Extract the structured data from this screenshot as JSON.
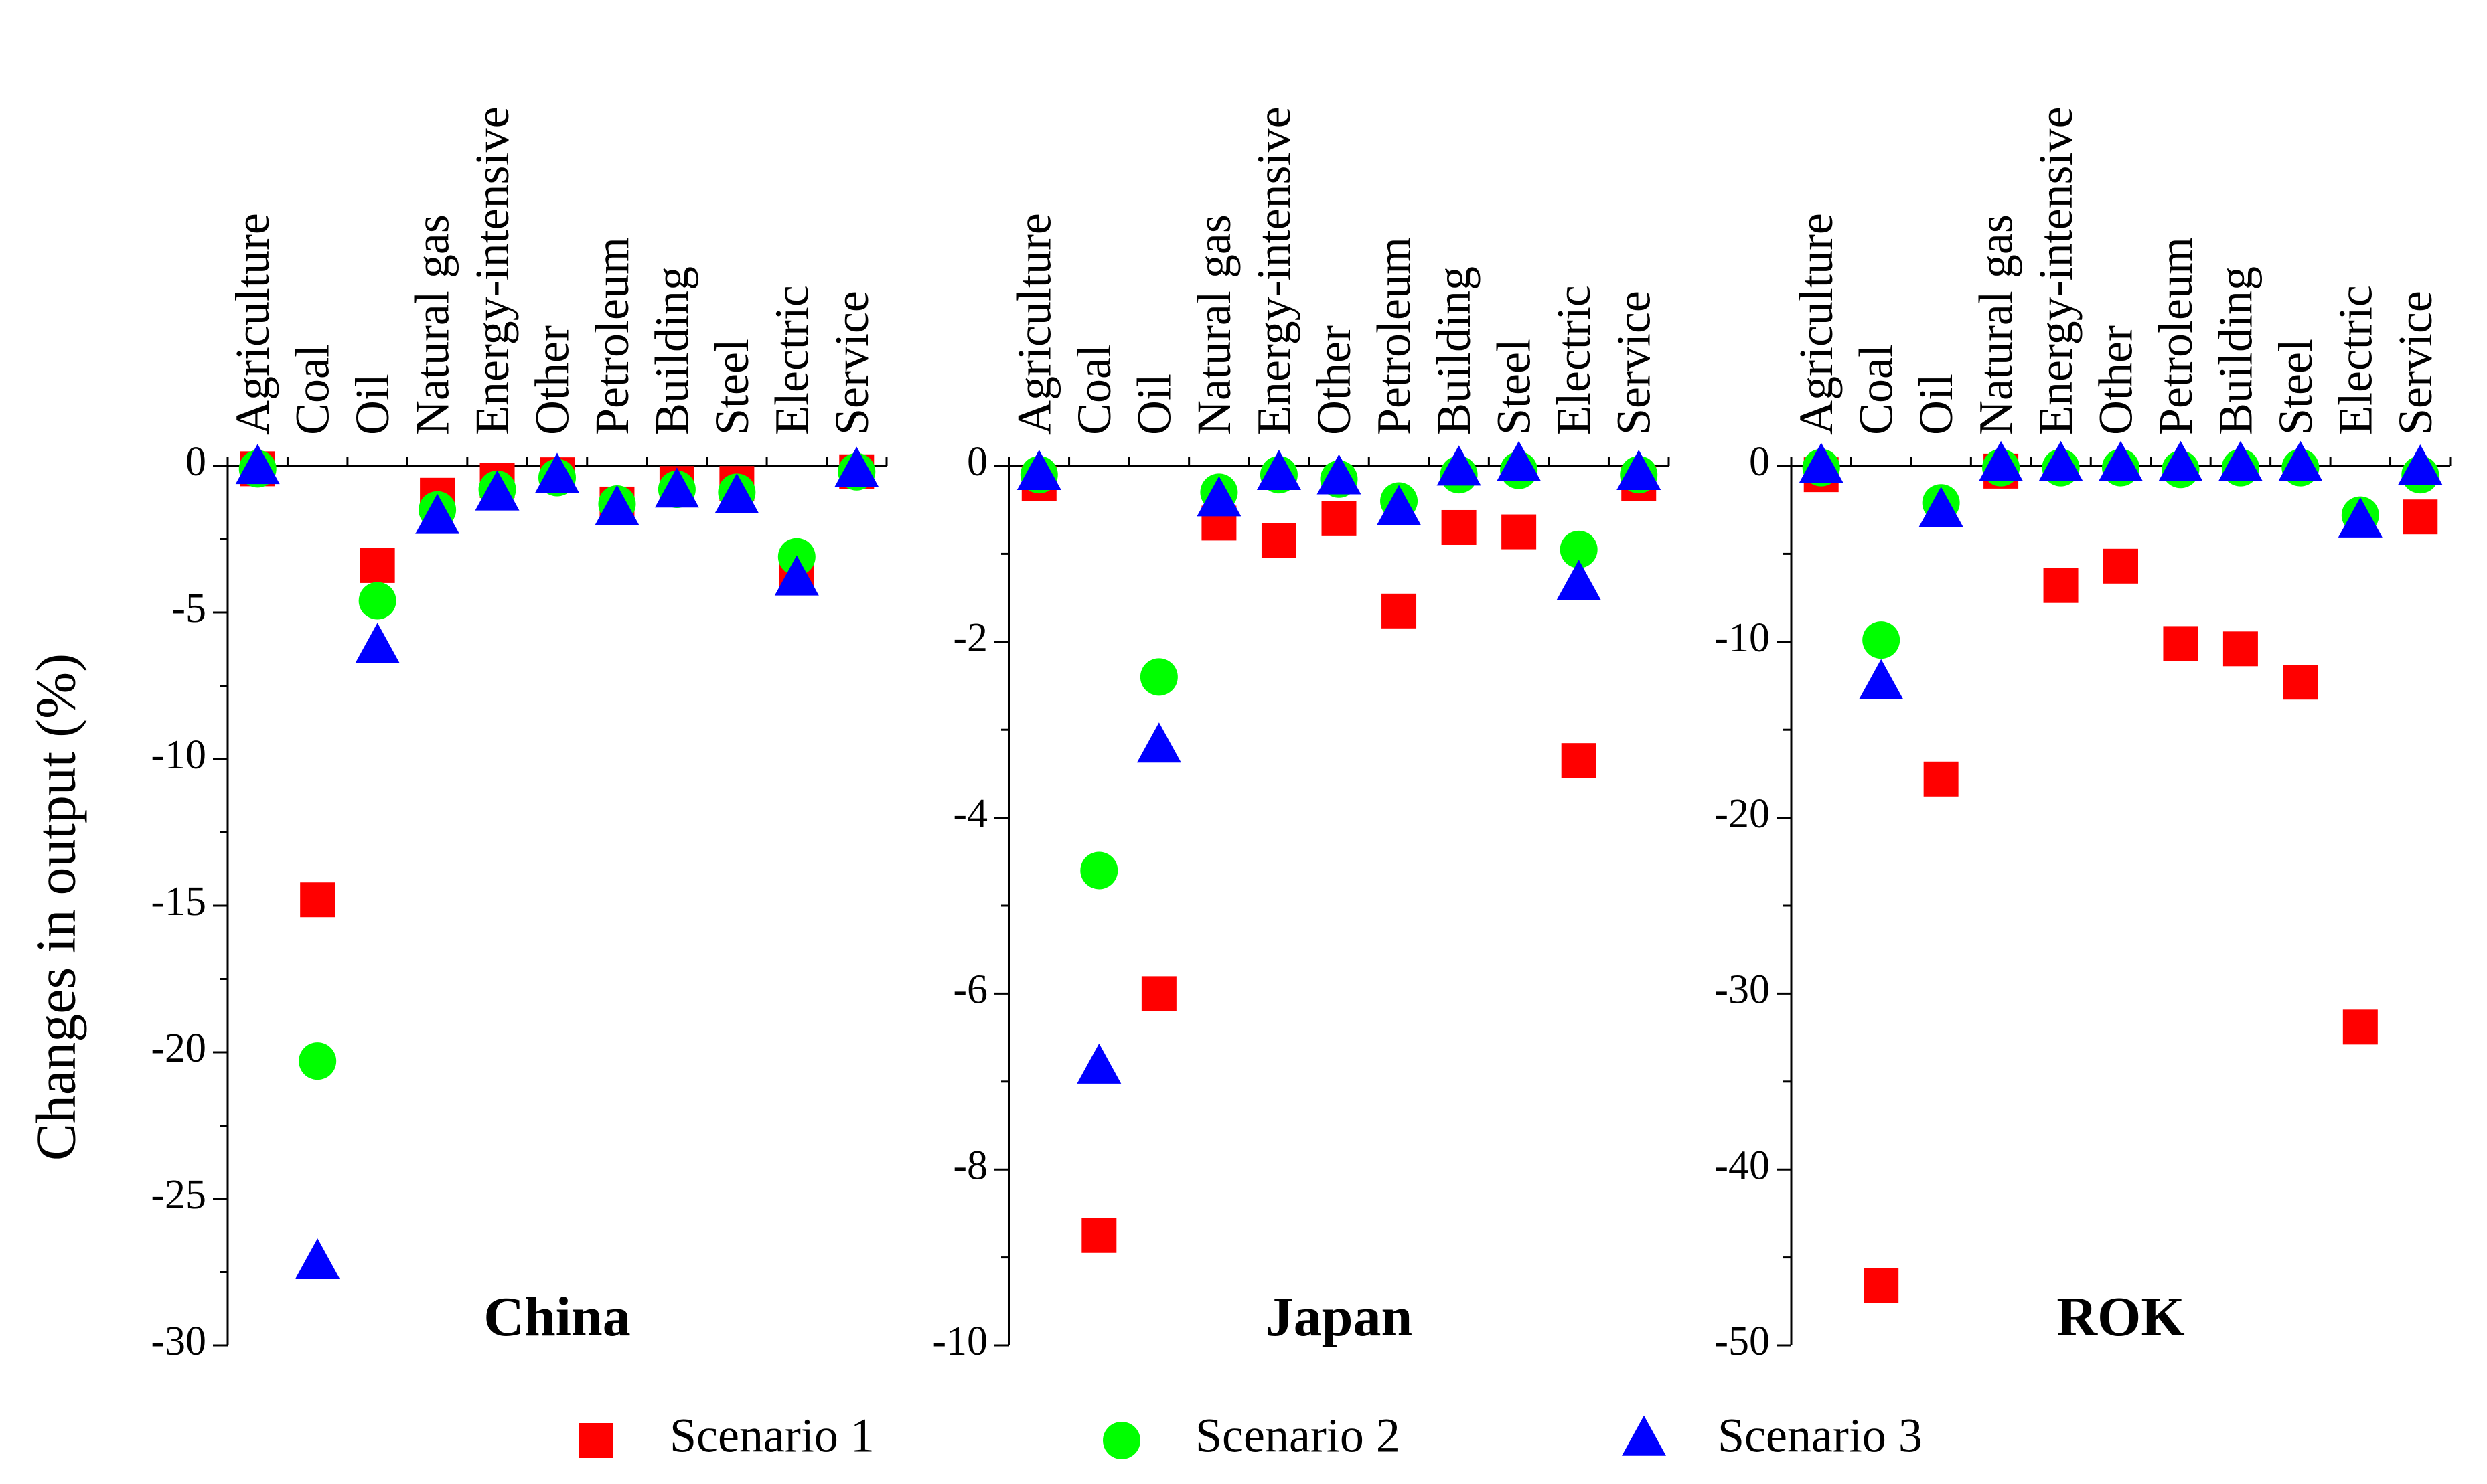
{
  "chart_data": {
    "type": "scatter",
    "ylabel": "Changes in output (%)",
    "categories": [
      "Agriculture",
      "Coal",
      "Oil",
      "Natural gas",
      "Energy-intensive",
      "Other",
      "Petroleum",
      "Building",
      "Steel",
      "Electric",
      "Service"
    ],
    "legend": {
      "placement": "bottom",
      "entries": [
        {
          "name": "Scenario 1",
          "marker": "square",
          "color": "#ff0000"
        },
        {
          "name": "Scenario 2",
          "marker": "circle",
          "color": "#00ff00"
        },
        {
          "name": "Scenario 3",
          "marker": "triangle",
          "color": "#0000ff"
        }
      ]
    },
    "panels": [
      {
        "title": "China",
        "ylim": [
          -30,
          0
        ],
        "yticks": [
          0,
          -5,
          -10,
          -15,
          -20,
          -25,
          -30
        ],
        "series": [
          {
            "name": "Scenario 1",
            "values": [
              -0.1,
              -14.8,
              -3.4,
              -1.0,
              -0.5,
              -0.3,
              -1.3,
              -0.6,
              -0.6,
              -3.6,
              -0.2
            ]
          },
          {
            "name": "Scenario 2",
            "values": [
              -0.1,
              -20.3,
              -4.6,
              -1.5,
              -0.8,
              -0.4,
              -1.3,
              -0.8,
              -0.9,
              -3.1,
              -0.2
            ]
          },
          {
            "name": "Scenario 3",
            "values": [
              -0.1,
              -27.2,
              -6.2,
              -1.8,
              -1.0,
              -0.4,
              -1.5,
              -0.9,
              -1.1,
              -3.9,
              -0.2
            ]
          }
        ]
      },
      {
        "title": "Japan",
        "ylim": [
          -10,
          0
        ],
        "yticks": [
          0,
          -2,
          -4,
          -6,
          -8,
          -10
        ],
        "series": [
          {
            "name": "Scenario 1",
            "values": [
              -0.2,
              -8.75,
              -6.0,
              -0.65,
              -0.85,
              -0.6,
              -1.65,
              -0.7,
              -0.75,
              -3.35,
              -0.2
            ]
          },
          {
            "name": "Scenario 2",
            "values": [
              -0.1,
              -4.6,
              -2.4,
              -0.3,
              -0.1,
              -0.15,
              -0.4,
              -0.1,
              -0.05,
              -0.95,
              -0.1
            ]
          },
          {
            "name": "Scenario 3",
            "values": [
              -0.1,
              -6.85,
              -3.2,
              -0.4,
              -0.1,
              -0.15,
              -0.5,
              -0.05,
              0.0,
              -1.35,
              -0.1
            ]
          }
        ]
      },
      {
        "title": "ROK",
        "ylim": [
          -50,
          0
        ],
        "yticks": [
          0,
          -10,
          -20,
          -30,
          -40,
          -50
        ],
        "series": [
          {
            "name": "Scenario 1",
            "values": [
              -0.5,
              -46.6,
              -17.8,
              -0.3,
              -6.8,
              -5.7,
              -10.1,
              -10.4,
              -12.3,
              -31.9,
              -2.9
            ]
          },
          {
            "name": "Scenario 2",
            "values": [
              -0.1,
              -9.9,
              -2.1,
              -0.1,
              -0.1,
              -0.1,
              -0.2,
              -0.1,
              -0.1,
              -2.8,
              -0.5
            ]
          },
          {
            "name": "Scenario 3",
            "values": [
              -0.1,
              -12.4,
              -2.6,
              0.0,
              0.0,
              0.0,
              0.0,
              0.0,
              0.0,
              -3.2,
              -0.2
            ]
          }
        ]
      }
    ]
  }
}
